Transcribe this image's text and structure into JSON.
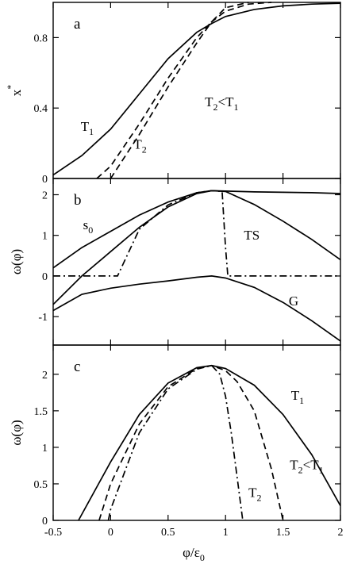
{
  "chart_data": [
    {
      "type": "line",
      "panel": "a",
      "xlim": [
        -0.5,
        2
      ],
      "ylim": [
        0,
        1
      ],
      "xticks": [],
      "yticks": [
        0,
        0.4,
        0.8
      ],
      "ytick_labels": [
        "0",
        "0.4",
        "0.8"
      ],
      "ylabel": "x*",
      "ylabel_main": "x",
      "ylabel_sup": "*",
      "grid": false,
      "annotations": [
        {
          "main": "T",
          "sub": "1",
          "x": -0.26,
          "y": 0.27
        },
        {
          "main": "T",
          "sub": "2",
          "x": 0.2,
          "y": 0.17
        },
        {
          "main": "T",
          "sub": "2",
          "rest": "<T",
          "sub2": "1",
          "x": 0.82,
          "y": 0.41
        }
      ],
      "series": [
        {
          "name": "T1",
          "style": "solid",
          "x": [
            -0.5,
            -0.25,
            0,
            0.25,
            0.5,
            0.75,
            0.88,
            1.0,
            1.25,
            1.5,
            1.75,
            2.0
          ],
          "y": [
            0.02,
            0.13,
            0.28,
            0.48,
            0.68,
            0.83,
            0.88,
            0.92,
            0.96,
            0.98,
            0.99,
            0.995
          ]
        },
        {
          "name": "T2",
          "style": "dashed",
          "x": [
            -0.12,
            0,
            0.25,
            0.5,
            0.75,
            0.88,
            1.0,
            1.2
          ],
          "y": [
            0.0,
            0.07,
            0.31,
            0.57,
            0.8,
            0.89,
            0.97,
            1.0
          ]
        },
        {
          "name": "T2b",
          "style": "dashed",
          "x": [
            0,
            0.25,
            0.5,
            0.75,
            0.88,
            1.0,
            1.2,
            1.4
          ],
          "y": [
            0.0,
            0.25,
            0.52,
            0.77,
            0.89,
            0.95,
            0.99,
            1.0
          ]
        }
      ]
    },
    {
      "type": "line",
      "panel": "b",
      "xlim": [
        -0.5,
        2
      ],
      "ylim": [
        -1.7,
        2.4
      ],
      "xticks": [],
      "yticks": [
        -1,
        0,
        1,
        2
      ],
      "ytick_labels": [
        "-1",
        "0",
        "1",
        "2"
      ],
      "ylabel": "ω(φ)",
      "grid": false,
      "annotations": [
        {
          "main": "s",
          "sub": "0",
          "x": -0.24,
          "y": 1.15
        },
        {
          "main": "TS",
          "x": 1.16,
          "y": 0.9
        },
        {
          "main": "G",
          "x": 1.55,
          "y": -0.72
        }
      ],
      "series": [
        {
          "name": "s0",
          "style": "solid",
          "x": [
            -0.5,
            -0.25,
            0,
            0.25,
            0.5,
            0.75,
            0.88,
            1.0,
            1.25,
            1.5,
            1.75,
            2.0
          ],
          "y": [
            0.2,
            0.7,
            1.1,
            1.5,
            1.82,
            2.05,
            2.1,
            2.08,
            1.76,
            1.35,
            0.9,
            0.4
          ]
        },
        {
          "name": "upper",
          "style": "solid",
          "x": [
            -0.5,
            -0.25,
            0,
            0.25,
            0.5,
            0.75,
            0.88,
            1.0,
            1.25,
            1.5,
            1.75,
            2.0
          ],
          "y": [
            -0.7,
            0.0,
            0.6,
            1.2,
            1.7,
            2.03,
            2.1,
            2.09,
            2.07,
            2.06,
            2.05,
            2.03
          ]
        },
        {
          "name": "TS",
          "style": "dashdot",
          "x": [
            -0.5,
            -0.25,
            0,
            0.06,
            0.25,
            0.5,
            0.75,
            0.88,
            0.97,
            1.0,
            1.02,
            1.25,
            1.5,
            1.75,
            2.0
          ],
          "y": [
            0,
            0,
            0,
            0.0,
            1.15,
            1.75,
            2.05,
            2.1,
            2.08,
            0.7,
            0,
            0,
            0,
            0,
            0
          ]
        },
        {
          "name": "G",
          "style": "solid",
          "x": [
            -0.5,
            -0.25,
            0,
            0.25,
            0.5,
            0.75,
            0.88,
            1.0,
            1.25,
            1.5,
            1.75,
            2.0
          ],
          "y": [
            -0.85,
            -0.45,
            -0.3,
            -0.2,
            -0.12,
            -0.03,
            0.0,
            -0.05,
            -0.28,
            -0.65,
            -1.1,
            -1.6
          ]
        }
      ]
    },
    {
      "type": "line",
      "panel": "c",
      "xlim": [
        -0.5,
        2
      ],
      "ylim": [
        0,
        2.4
      ],
      "xticks": [
        -0.5,
        0,
        0.5,
        1,
        1.5,
        2
      ],
      "xtick_labels": [
        "-0.5",
        "0",
        "0.5",
        "1",
        "1.5",
        "2"
      ],
      "yticks": [
        0,
        0.5,
        1,
        1.5,
        2
      ],
      "ytick_labels": [
        "0",
        "0.5",
        "1",
        "1.5",
        "2"
      ],
      "xlabel": "φ/ε0",
      "xlabel_main": "φ/ε",
      "xlabel_sub": "0",
      "ylabel": "ω(φ)",
      "grid": false,
      "annotations": [
        {
          "main": "T",
          "sub": "1",
          "x": 1.57,
          "y": 1.65
        },
        {
          "main": "T",
          "sub": "2",
          "x": 1.2,
          "y": 0.32
        },
        {
          "main": "T",
          "sub": "2",
          "rest": "<T",
          "sub2": "1",
          "x": 1.56,
          "y": 0.7
        }
      ],
      "series": [
        {
          "name": "T1",
          "style": "solid",
          "x": [
            -0.28,
            0,
            0.25,
            0.5,
            0.75,
            0.88,
            1.0,
            1.25,
            1.5,
            1.75,
            2.0
          ],
          "y": [
            0.0,
            0.8,
            1.45,
            1.88,
            2.09,
            2.12,
            2.08,
            1.85,
            1.45,
            0.9,
            0.2
          ]
        },
        {
          "name": "T2<T1",
          "style": "dashed",
          "x": [
            -0.1,
            0,
            0.25,
            0.5,
            0.75,
            0.88,
            1.0,
            1.1,
            1.25,
            1.4,
            1.5
          ],
          "y": [
            0.0,
            0.5,
            1.32,
            1.83,
            2.08,
            2.12,
            2.05,
            1.9,
            1.5,
            0.7,
            0.0
          ]
        },
        {
          "name": "T2",
          "style": "dashdot",
          "x": [
            -0.02,
            0,
            0.25,
            0.5,
            0.75,
            0.88,
            0.95,
            1.0,
            1.05,
            1.1,
            1.15
          ],
          "y": [
            0.0,
            0.15,
            1.2,
            1.8,
            2.07,
            2.12,
            2.0,
            1.7,
            1.2,
            0.6,
            0.0
          ]
        }
      ]
    }
  ]
}
